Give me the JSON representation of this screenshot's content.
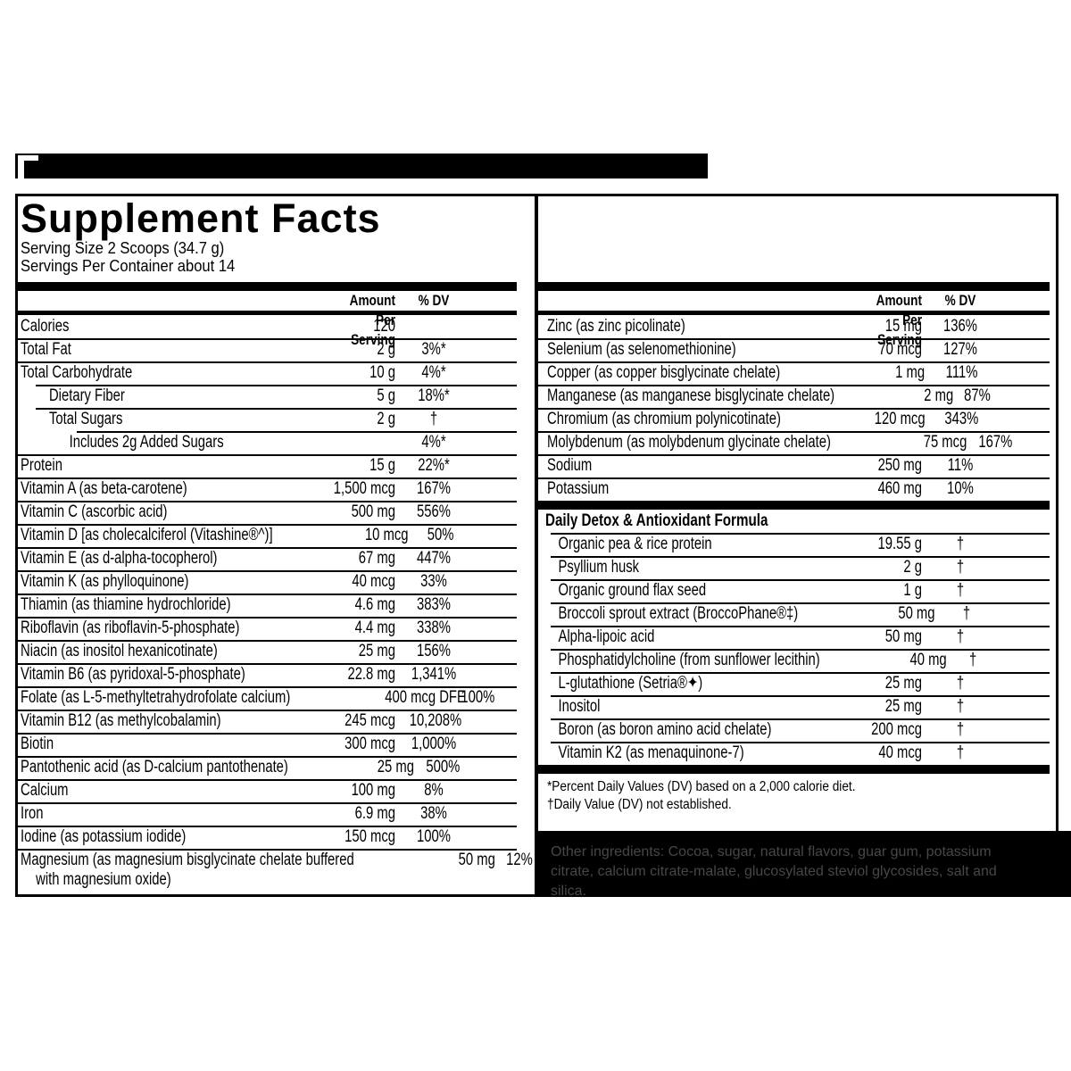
{
  "title": "Supplement Facts",
  "serving": {
    "size": "Serving Size 2 Scoops (34.7 g)",
    "per_container": "Servings Per Container about 14"
  },
  "header": {
    "amount": "Amount Per Serving",
    "dv": "% DV"
  },
  "left_rows": [
    {
      "label": "Calories",
      "amount": "120",
      "dv": ""
    },
    {
      "label": "Total Fat",
      "amount": "2 g",
      "dv": "3%*"
    },
    {
      "label": "Total Carbohydrate",
      "amount": "10 g",
      "dv": "4%*"
    },
    {
      "label": "Dietary Fiber",
      "amount": "5 g",
      "dv": "18%*",
      "indent": 1
    },
    {
      "label": "Total Sugars",
      "amount": "2 g",
      "dv": "†",
      "indent": 1
    },
    {
      "label": "Includes 2g Added Sugars",
      "amount": "",
      "dv": "4%*",
      "indent": 2
    },
    {
      "label": "Protein",
      "amount": "15 g",
      "dv": "22%*"
    },
    {
      "label": "Vitamin A (as beta-carotene)",
      "amount": "1,500 mcg",
      "dv": "167%"
    },
    {
      "label": "Vitamin C (ascorbic acid)",
      "amount": "500 mg",
      "dv": "556%"
    },
    {
      "label": "Vitamin D [as cholecalciferol (Vitashine®^)]",
      "amount": "10 mcg",
      "dv": "50%"
    },
    {
      "label": "Vitamin E (as d-alpha-tocopherol)",
      "amount": "67 mg",
      "dv": "447%"
    },
    {
      "label": "Vitamin K (as phylloquinone)",
      "amount": "40 mcg",
      "dv": "33%"
    },
    {
      "label": "Thiamin (as thiamine hydrochloride)",
      "amount": "4.6 mg",
      "dv": "383%"
    },
    {
      "label": "Riboflavin (as riboflavin-5-phosphate)",
      "amount": "4.4 mg",
      "dv": "338%"
    },
    {
      "label": "Niacin (as inositol hexanicotinate)",
      "amount": "25 mg",
      "dv": "156%"
    },
    {
      "label": "Vitamin B6 (as pyridoxal-5-phosphate)",
      "amount": "22.8 mg",
      "dv": "1,341%"
    },
    {
      "label": "Folate (as L-5-methyltetrahydrofolate calcium)",
      "amount": "400 mcg DFE",
      "dv": "100%"
    },
    {
      "label": "Vitamin B12 (as methylcobalamin)",
      "amount": "245 mcg",
      "dv": "10,208%"
    },
    {
      "label": "Biotin",
      "amount": "300 mcg",
      "dv": "1,000%"
    },
    {
      "label": "Pantothenic acid (as D-calcium pantothenate)",
      "amount": "25 mg",
      "dv": "500%"
    },
    {
      "label": "Calcium",
      "amount": "100 mg",
      "dv": "8%"
    },
    {
      "label": "Iron",
      "amount": "6.9 mg",
      "dv": "38%"
    },
    {
      "label": "Iodine (as potassium iodide)",
      "amount": "150 mcg",
      "dv": "100%"
    },
    {
      "label": "Magnesium (as magnesium bisglycinate chelate buffered",
      "label2": "with magnesium oxide)",
      "amount": "50 mg",
      "dv": "12%"
    }
  ],
  "right_rows": [
    {
      "label": "Zinc (as zinc picolinate)",
      "amount": "15 mg",
      "dv": "136%"
    },
    {
      "label": "Selenium (as selenomethionine)",
      "amount": "70 mcg",
      "dv": "127%"
    },
    {
      "label": "Copper (as copper bisglycinate chelate)",
      "amount": "1 mg",
      "dv": "111%"
    },
    {
      "label": "Manganese (as manganese bisglycinate chelate)",
      "amount": "2 mg",
      "dv": "87%"
    },
    {
      "label": "Chromium (as chromium polynicotinate)",
      "amount": "120 mcg",
      "dv": "343%"
    },
    {
      "label": "Molybdenum (as molybdenum glycinate chelate)",
      "amount": "75 mcg",
      "dv": "167%"
    },
    {
      "label": "Sodium",
      "amount": "250 mg",
      "dv": "11%"
    },
    {
      "label": "Potassium",
      "amount": "460 mg",
      "dv": "10%"
    }
  ],
  "detox_header": "Daily Detox & Antioxidant Formula",
  "detox_rows": [
    {
      "label": "Organic pea & rice protein",
      "amount": "19.55 g",
      "dv": "†"
    },
    {
      "label": "Psyllium husk",
      "amount": "2 g",
      "dv": "†"
    },
    {
      "label": "Organic ground flax seed",
      "amount": "1 g",
      "dv": "†"
    },
    {
      "label": "Broccoli sprout extract (BroccoPhane®‡)",
      "amount": "50 mg",
      "dv": "†"
    },
    {
      "label": "Alpha-lipoic acid",
      "amount": "50 mg",
      "dv": "†"
    },
    {
      "label": "Phosphatidylcholine (from sunflower lecithin)",
      "amount": "40 mg",
      "dv": "†"
    },
    {
      "label": "L-glutathione (Setria®✦)",
      "amount": "25 mg",
      "dv": "†"
    },
    {
      "label": "Inositol",
      "amount": "25 mg",
      "dv": "†"
    },
    {
      "label": "Boron (as boron amino acid chelate)",
      "amount": "200 mcg",
      "dv": "†"
    },
    {
      "label": "Vitamin K2 (as menaquinone-7)",
      "amount": "40 mcg",
      "dv": "†"
    }
  ],
  "footnotes": [
    "*Percent Daily Values (DV) based on a 2,000 calorie diet.",
    "†Daily Value (DV) not established."
  ],
  "other_ingredients": "Other ingredients: Cocoa, sugar, natural flavors, guar gum, potassium citrate, calcium citrate-malate, glucosylated steviol glycosides, salt and silica.",
  "colors": {
    "ink": "#000000",
    "ingredients_bg": "#000000",
    "ingredients_text": "#474747"
  }
}
